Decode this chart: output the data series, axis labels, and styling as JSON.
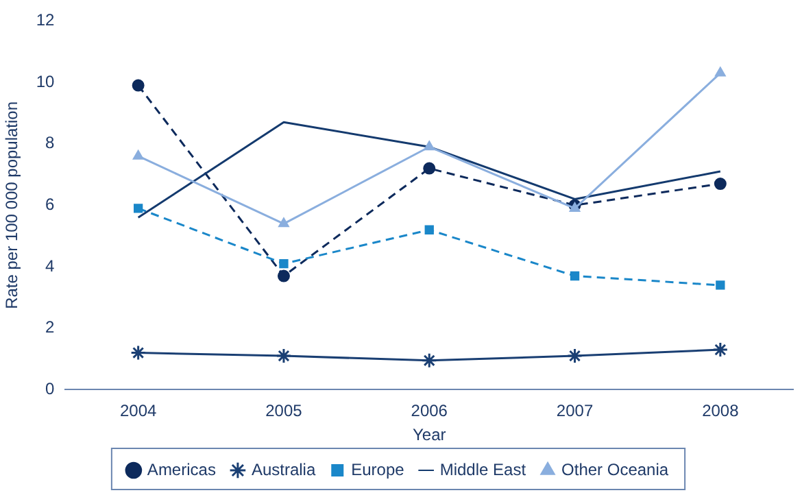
{
  "chart_data": {
    "type": "line",
    "xlabel": "Year",
    "ylabel": "Rate per 100 000 population",
    "categories": [
      "2004",
      "2005",
      "2006",
      "2007",
      "2008"
    ],
    "ylim": [
      0,
      12
    ],
    "yticks": [
      0,
      2,
      4,
      6,
      8,
      10,
      12
    ],
    "grid": false,
    "legend": "bottom",
    "series": [
      {
        "name": "Americas",
        "color": "#0d2a5c",
        "values": [
          9.9,
          3.7,
          7.2,
          6.0,
          6.7
        ],
        "marker": "circle",
        "line_style": "dashed"
      },
      {
        "name": "Australia",
        "color": "#1a3f73",
        "values": [
          1.2,
          1.1,
          0.95,
          1.1,
          1.3
        ],
        "marker": "cross",
        "line_style": "solid"
      },
      {
        "name": "Europe",
        "color": "#1a87c9",
        "values": [
          5.9,
          4.1,
          5.2,
          3.7,
          3.4
        ],
        "marker": "square",
        "line_style": "dashed"
      },
      {
        "name": "Middle East",
        "color": "#143a6e",
        "values": [
          5.6,
          8.7,
          7.9,
          6.2,
          7.1
        ],
        "marker": "none",
        "line_style": "solid"
      },
      {
        "name": "Other Oceania",
        "color": "#8aaede",
        "values": [
          7.6,
          5.4,
          7.9,
          5.9,
          10.3
        ],
        "marker": "triangle",
        "line_style": "solid"
      }
    ]
  }
}
